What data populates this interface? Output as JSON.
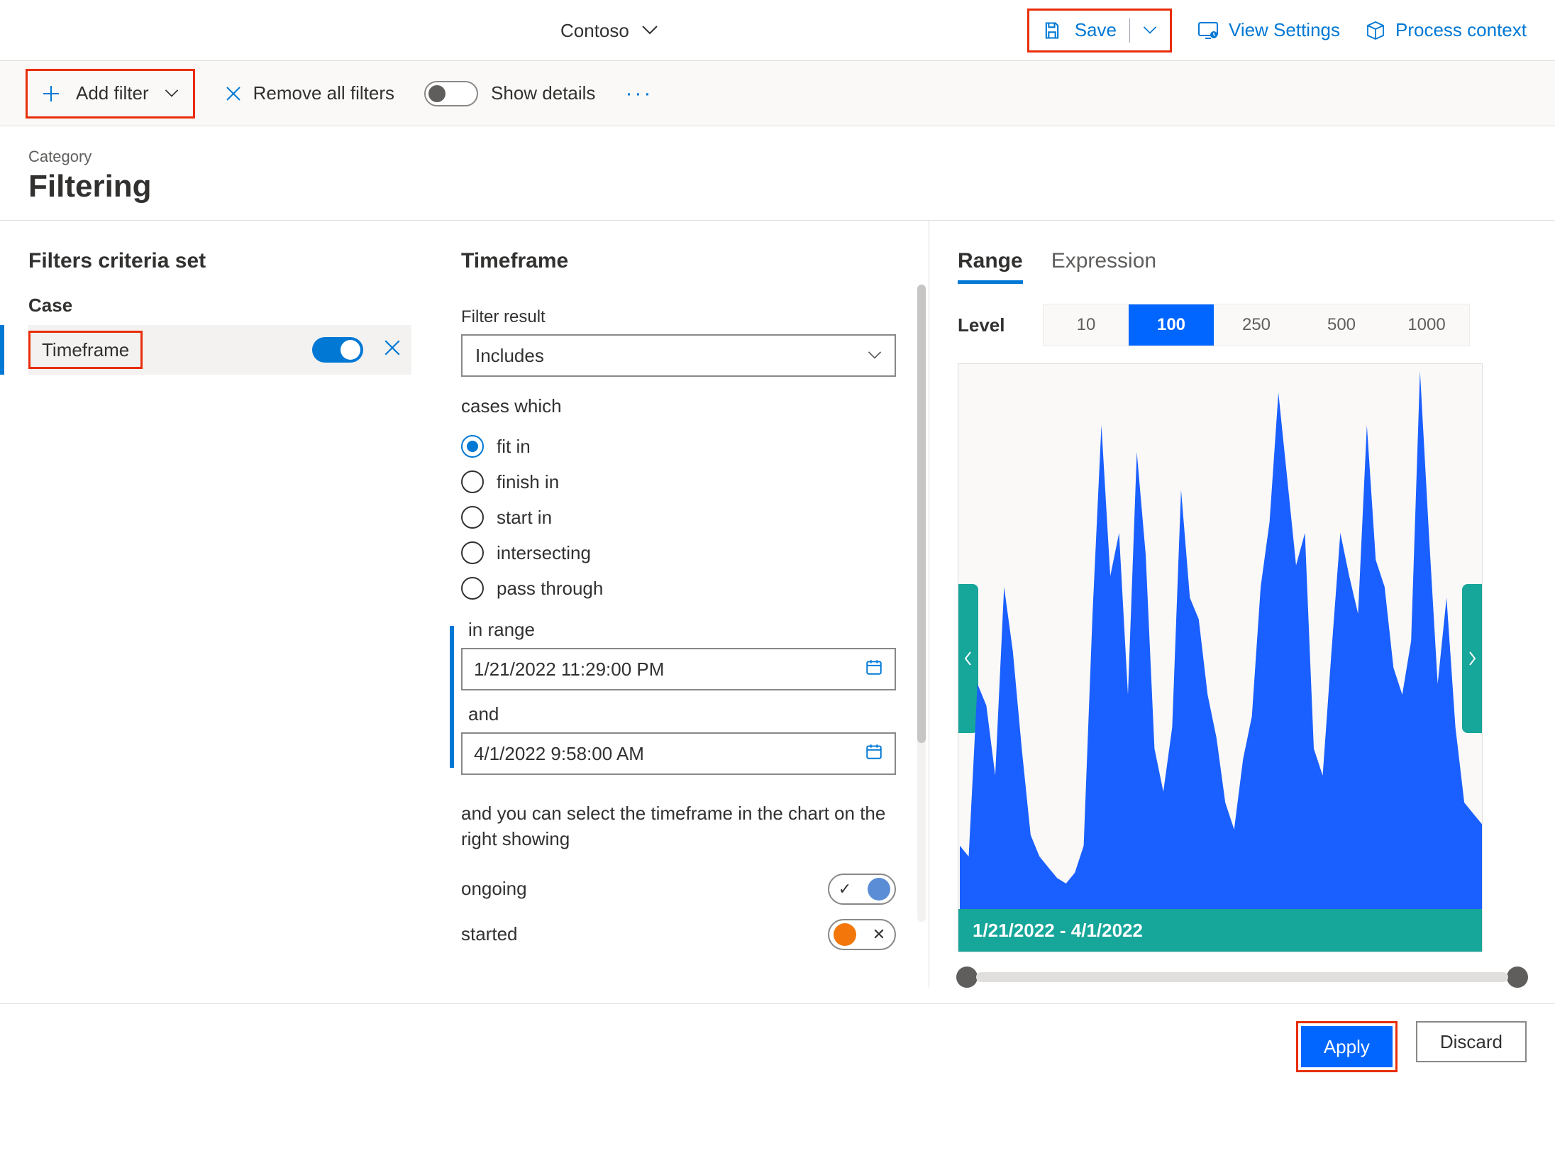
{
  "header": {
    "org_name": "Contoso",
    "save_label": "Save",
    "view_settings_label": "View Settings",
    "process_context_label": "Process context"
  },
  "toolbar": {
    "add_filter_label": "Add filter",
    "remove_all_label": "Remove all filters",
    "show_details_label": "Show details",
    "show_details_on": false
  },
  "category": {
    "sub": "Category",
    "title": "Filtering"
  },
  "left": {
    "heading": "Filters criteria set",
    "group": "Case",
    "items": [
      {
        "name": "Timeframe",
        "enabled": true,
        "selected": true
      }
    ]
  },
  "mid": {
    "title": "Timeframe",
    "filter_result_label": "Filter result",
    "filter_result_value": "Includes",
    "cases_label": "cases which",
    "radios": [
      {
        "label": "fit in",
        "selected": true
      },
      {
        "label": "finish in",
        "selected": false
      },
      {
        "label": "start in",
        "selected": false
      },
      {
        "label": "intersecting",
        "selected": false
      },
      {
        "label": "pass through",
        "selected": false
      }
    ],
    "in_range_label": "in range",
    "date_from": "1/21/2022 11:29:00 PM",
    "and_label": "and",
    "date_to": "4/1/2022 9:58:00 AM",
    "chart_note": "and you can select the timeframe in the chart on the right showing",
    "switches": [
      {
        "label": "ongoing",
        "color": "#5b8dd6",
        "on": true
      },
      {
        "label": "started",
        "color": "#f2760a",
        "on": false
      }
    ]
  },
  "right": {
    "tabs": {
      "range": "Range",
      "expression": "Expression",
      "active": "range"
    },
    "level_label": "Level",
    "levels": [
      "10",
      "100",
      "250",
      "500",
      "1000"
    ],
    "level_active": "100",
    "chart_range_caption": "1/21/2022 - 4/1/2022",
    "chart": {
      "type": "area",
      "series_color": "#1a5fff",
      "bg_color": "#faf9f8",
      "caption_bg": "#17a69a",
      "xlim": [
        0,
        100
      ],
      "ylim": [
        0,
        100
      ],
      "values": [
        12,
        10,
        42,
        38,
        25,
        60,
        48,
        30,
        14,
        10,
        8,
        6,
        5,
        7,
        12,
        55,
        90,
        62,
        70,
        40,
        85,
        66,
        30,
        22,
        34,
        78,
        58,
        54,
        40,
        32,
        20,
        15,
        28,
        36,
        60,
        72,
        96,
        80,
        64,
        70,
        30,
        25,
        48,
        70,
        62,
        55,
        90,
        65,
        60,
        45,
        40,
        50,
        100,
        70,
        42,
        58,
        34,
        20,
        18,
        16
      ]
    }
  },
  "footer": {
    "apply": "Apply",
    "discard": "Discard"
  },
  "colors": {
    "accent": "#0078d4",
    "highlight_border": "#e82e0a",
    "teal": "#17a69a",
    "blue": "#1a5fff",
    "orange": "#f2760a",
    "gray_row": "#f3f2f1"
  }
}
